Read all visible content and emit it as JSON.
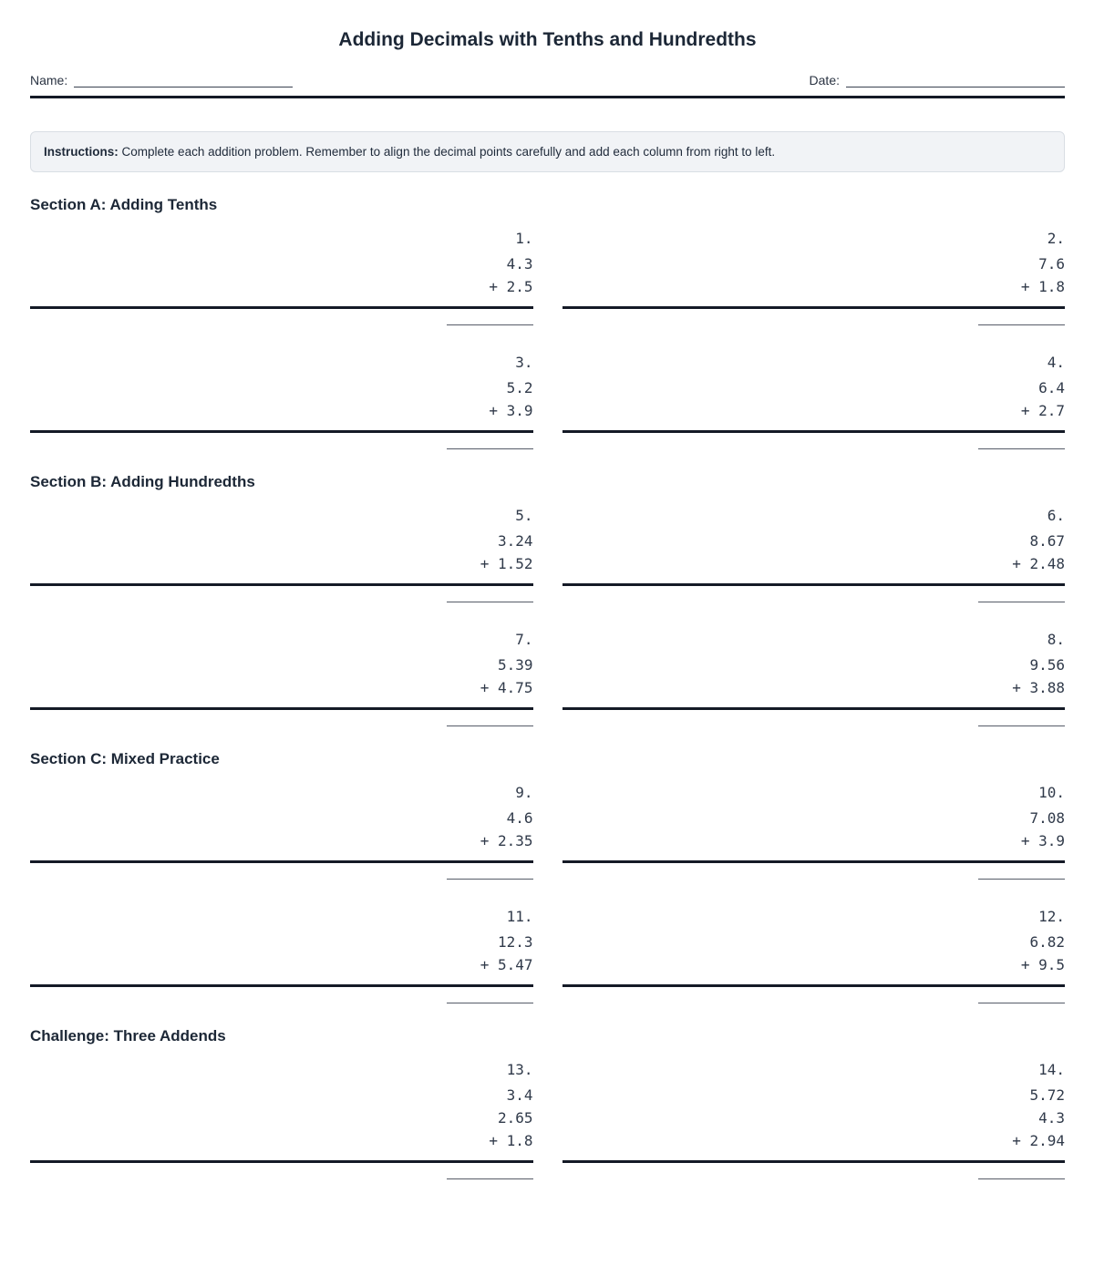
{
  "title": "Adding Decimals with Tenths and Hundredths",
  "name_label": "Name:",
  "date_label": "Date:",
  "instructions": {
    "label": "Instructions:",
    "text": "Complete each addition problem. Remember to align the decimal points carefully and add each column from right to left."
  },
  "plus_sign": "+",
  "sections": [
    {
      "heading": "Section A: Adding Tenths",
      "problems": [
        {
          "number": "1.",
          "addends": [
            "4.3",
            "2.5"
          ]
        },
        {
          "number": "2.",
          "addends": [
            "7.6",
            "1.8"
          ]
        },
        {
          "number": "3.",
          "addends": [
            "5.2",
            "3.9"
          ]
        },
        {
          "number": "4.",
          "addends": [
            "6.4",
            "2.7"
          ]
        }
      ]
    },
    {
      "heading": "Section B: Adding Hundredths",
      "problems": [
        {
          "number": "5.",
          "addends": [
            "3.24",
            "1.52"
          ]
        },
        {
          "number": "6.",
          "addends": [
            "8.67",
            "2.48"
          ]
        },
        {
          "number": "7.",
          "addends": [
            "5.39",
            "4.75"
          ]
        },
        {
          "number": "8.",
          "addends": [
            "9.56",
            "3.88"
          ]
        }
      ]
    },
    {
      "heading": "Section C: Mixed Practice",
      "problems": [
        {
          "number": "9.",
          "addends": [
            "4.6",
            "2.35"
          ]
        },
        {
          "number": "10.",
          "addends": [
            "7.08",
            "3.9"
          ]
        },
        {
          "number": "11.",
          "addends": [
            "12.3",
            "5.47"
          ]
        },
        {
          "number": "12.",
          "addends": [
            "6.82",
            "9.5"
          ]
        }
      ]
    },
    {
      "heading": "Challenge: Three Addends",
      "problems": [
        {
          "number": "13.",
          "addends": [
            "3.4",
            "2.65",
            "1.8"
          ]
        },
        {
          "number": "14.",
          "addends": [
            "5.72",
            "4.3",
            "2.94"
          ]
        }
      ]
    }
  ]
}
